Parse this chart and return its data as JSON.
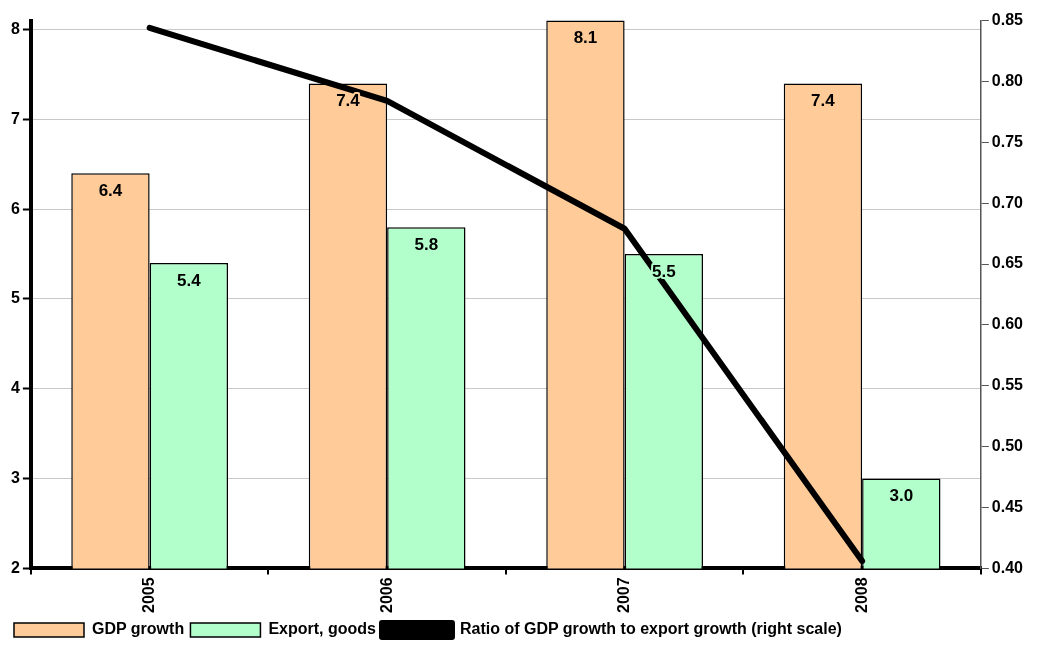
{
  "chart_data": {
    "type": "bar",
    "categories": [
      "2005",
      "2006",
      "2007",
      "2008"
    ],
    "series": [
      {
        "name": "GDP growth",
        "color": "#ffcc99",
        "values": [
          6.4,
          7.4,
          8.1,
          7.4
        ],
        "value_labels": [
          "6.4",
          "7.4",
          "8.1",
          "7.4"
        ]
      },
      {
        "name": "Export, goods",
        "color": "#b3ffcc",
        "values": [
          5.4,
          5.8,
          5.5,
          3.0
        ],
        "value_labels": [
          "5.4",
          "5.8",
          "5.5",
          "3.0"
        ]
      },
      {
        "name": "Ratio of GDP growth to export growth (right scale)",
        "type": "line",
        "axis": "y2",
        "color": "#000000",
        "values": [
          0.844,
          0.784,
          0.679,
          0.406
        ]
      }
    ],
    "ylim": [
      2,
      8.1
    ],
    "yticks": [
      2,
      3,
      4,
      5,
      6,
      7,
      8
    ],
    "y2lim": [
      0.4,
      0.85
    ],
    "y2ticks": [
      {
        "value": 0.4,
        "label": "0.40"
      },
      {
        "value": 0.45,
        "label": "0.45"
      },
      {
        "value": 0.5,
        "label": "0.50"
      },
      {
        "value": 0.55,
        "label": "0.55"
      },
      {
        "value": 0.6,
        "label": "0.60"
      },
      {
        "value": 0.65,
        "label": "0.65"
      },
      {
        "value": 0.7,
        "label": "0.70"
      },
      {
        "value": 0.75,
        "label": "0.75"
      },
      {
        "value": 0.8,
        "label": "0.80"
      },
      {
        "value": 0.85,
        "label": "0.85"
      }
    ],
    "grid": "y",
    "legend": "bottom",
    "marker": "none"
  }
}
